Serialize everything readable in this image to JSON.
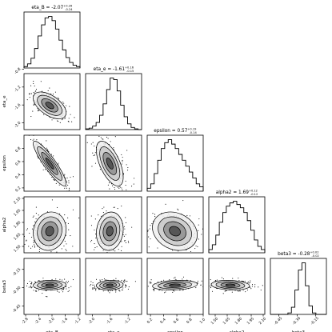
{
  "chart_data": {
    "type": "corner",
    "params": [
      "eta_B",
      "eta_e",
      "epsilon",
      "alpha2",
      "beta3"
    ],
    "ranges": {
      "eta_B": [
        -2.85,
        -1.15
      ],
      "eta_e": [
        -2.15,
        -0.9
      ],
      "epsilon": [
        0.15,
        1.0
      ],
      "alpha2": [
        1.42,
        2.12
      ],
      "beta3": [
        -0.52,
        -0.06
      ]
    },
    "ticks": {
      "eta_B": [
        "-2.8",
        "-2.4",
        "-2.0",
        "-1.6",
        "-1.2"
      ],
      "eta_e": [
        "-2.0",
        "-1.6",
        "-1.2"
      ],
      "epsilon": [
        "0.2",
        "0.4",
        "0.6",
        "0.8",
        "1.0"
      ],
      "alpha2": [
        "1.50",
        "1.65",
        "1.80",
        "1.95",
        "2.10"
      ],
      "beta3": [
        "-0.45",
        "-0.30",
        "-0.15"
      ]
    },
    "tick_values": {
      "eta_B": [
        -2.8,
        -2.4,
        -2.0,
        -1.6,
        -1.2
      ],
      "eta_e": [
        -2.0,
        -1.6,
        -1.2
      ],
      "epsilon": [
        0.2,
        0.4,
        0.6,
        0.8,
        1.0
      ],
      "alpha2": [
        1.5,
        1.65,
        1.8,
        1.95,
        2.1
      ],
      "beta3": [
        -0.45,
        -0.3,
        -0.15
      ]
    },
    "y_ticks": {
      "eta_e": [
        "-0.8",
        "-1.2",
        "-1.6",
        "-2.0"
      ],
      "epsilon": [
        "0.8",
        "0.6",
        "0.4",
        "0.2"
      ],
      "alpha2": [
        "2.10",
        "1.95",
        "1.80",
        "1.65",
        "1.50"
      ],
      "beta3": [
        "-0.15",
        "-0.30",
        "-0.45"
      ]
    },
    "y_tick_values": {
      "eta_e": [
        -0.8,
        -1.2,
        -1.6,
        -2.0
      ],
      "epsilon": [
        0.8,
        0.6,
        0.4,
        0.2
      ],
      "alpha2": [
        2.1,
        1.95,
        1.8,
        1.65,
        1.5
      ],
      "beta3": [
        -0.15,
        -0.3,
        -0.45
      ]
    },
    "titles": [
      {
        "name": "eta_B",
        "median": "-2.07",
        "plus": "+0.26",
        "minus": "-0.24"
      },
      {
        "name": "eta_e",
        "median": "-1.61",
        "plus": "+0.16",
        "minus": "-0.15"
      },
      {
        "name": "epsilon",
        "median": "0.57",
        "plus": "+0.19",
        "minus": "-0.14"
      },
      {
        "name": "alpha2",
        "median": "1.69",
        "plus": "+0.12",
        "minus": "-0.12"
      },
      {
        "name": "beta3",
        "median": "-0.28",
        "plus": "+0.02",
        "minus": "-0.02"
      }
    ],
    "marginals": {
      "eta_B": {
        "mean": -2.07,
        "sd": 0.25,
        "hist": [
          2,
          6,
          14,
          28,
          46,
          62,
          72,
          74,
          68,
          56,
          40,
          26,
          15,
          8,
          4,
          2
        ]
      },
      "eta_e": {
        "mean": -1.61,
        "sd": 0.15,
        "hist": [
          1,
          2,
          5,
          10,
          20,
          36,
          56,
          72,
          70,
          54,
          34,
          18,
          8,
          3,
          1,
          0
        ]
      },
      "epsilon": {
        "mean": 0.57,
        "sd": 0.17,
        "hist": [
          4,
          10,
          24,
          42,
          58,
          66,
          70,
          64,
          58,
          50,
          42,
          34,
          26,
          18,
          10,
          6
        ]
      },
      "alpha2": {
        "mean": 1.69,
        "sd": 0.12,
        "hist": [
          4,
          10,
          22,
          38,
          50,
          58,
          62,
          64,
          60,
          56,
          50,
          40,
          28,
          16,
          8,
          4
        ]
      },
      "beta3": {
        "mean": -0.28,
        "sd": 0.02,
        "hist": [
          0,
          0,
          0,
          0,
          0,
          2,
          10,
          34,
          62,
          72,
          40,
          12,
          2,
          0,
          0,
          0
        ]
      }
    },
    "correlations": {
      "eta_e|eta_B": -0.55,
      "epsilon|eta_B": -0.9,
      "epsilon|eta_e": -0.6,
      "alpha2|eta_B": 0.1,
      "alpha2|eta_e": 0.1,
      "alpha2|epsilon": -0.2,
      "beta3|eta_B": 0.05,
      "beta3|eta_e": 0.1,
      "beta3|epsilon": 0.2,
      "beta3|alpha2": -0.15
    },
    "contour_levels_sigma": [
      0.5,
      1.0,
      1.5,
      2.0
    ],
    "colors": {
      "ink": "#000000",
      "fill_dark": "#2b2b2b",
      "fill_light": "#d6d6d6"
    }
  }
}
